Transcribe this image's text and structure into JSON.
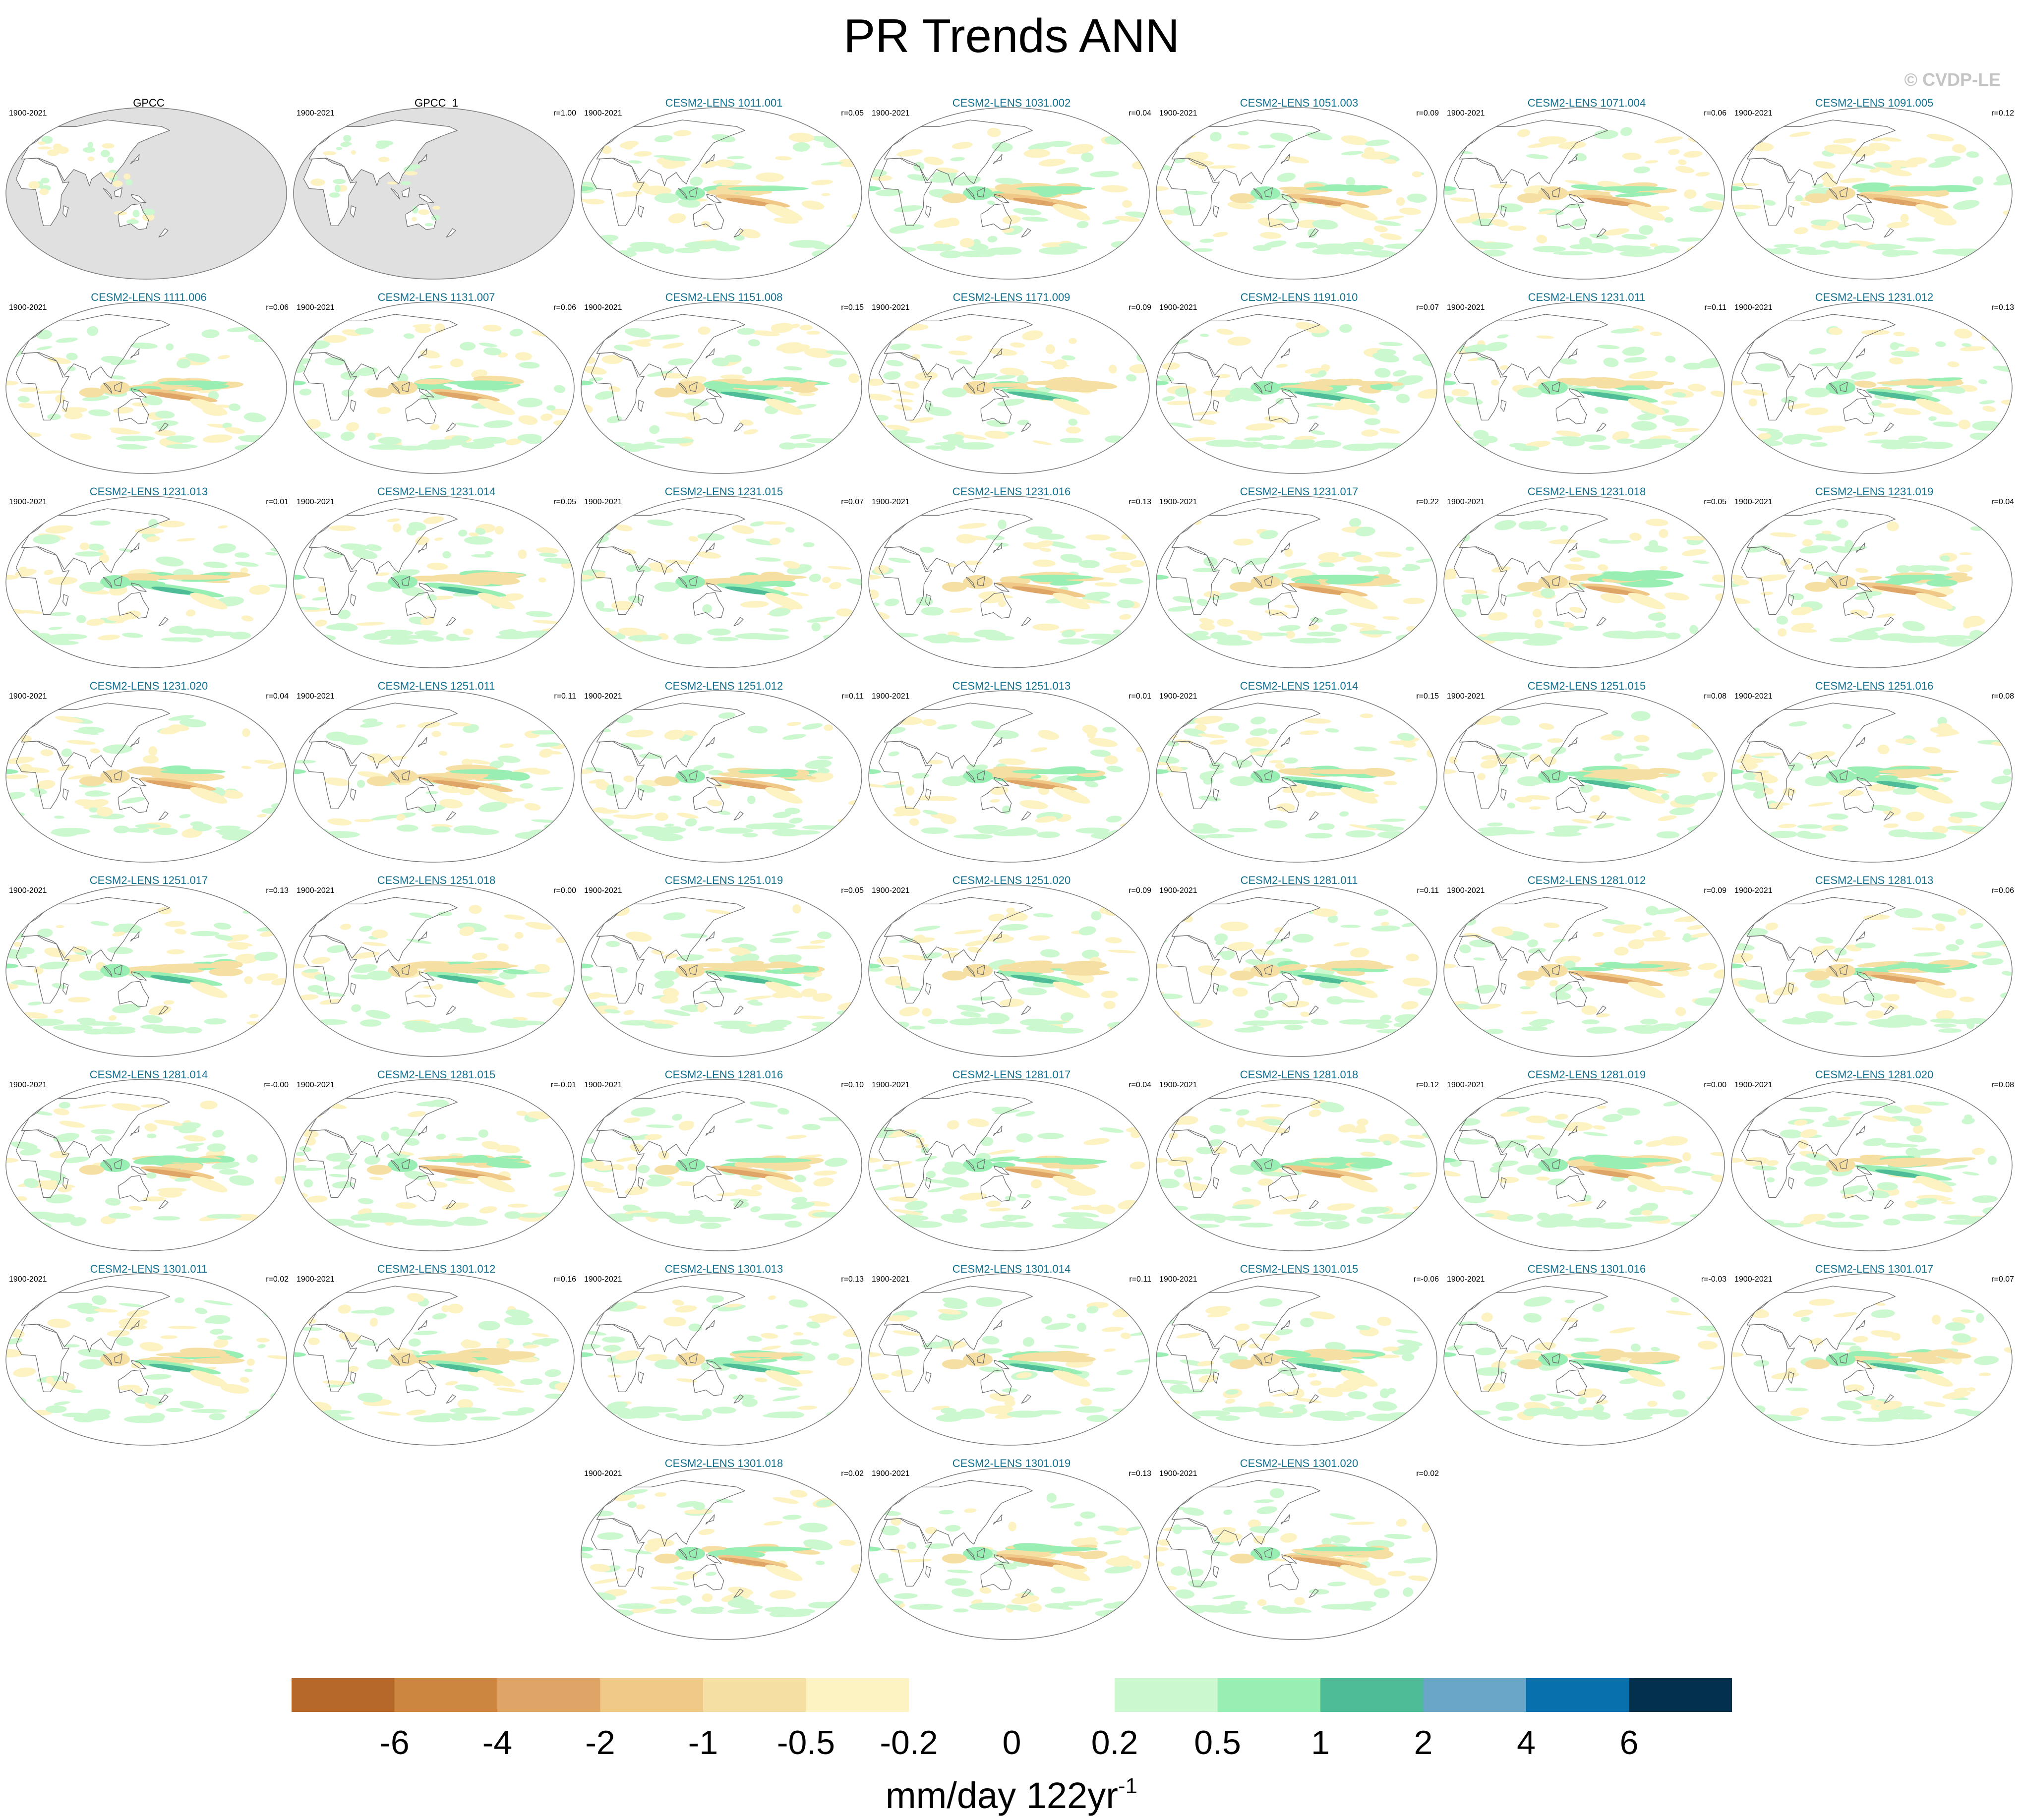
{
  "title": "PR Trends ANN",
  "watermark": "© CVDP-LE",
  "colors": {
    "ocean_obs": "#e0e0e0",
    "coast": "#6e6e6e",
    "member_label": "#14708f"
  },
  "panels": [
    {
      "name": "GPCC",
      "period": "1900-2021",
      "r": "",
      "obs": true
    },
    {
      "name": "GPCC_1",
      "period": "1900-2021",
      "r": "r=1.00",
      "obs": true
    },
    {
      "name": "CESM2-LENS 1011.001",
      "period": "1900-2021",
      "r": "r=0.05"
    },
    {
      "name": "CESM2-LENS 1031.002",
      "period": "1900-2021",
      "r": "r=0.04"
    },
    {
      "name": "CESM2-LENS 1051.003",
      "period": "1900-2021",
      "r": "r=0.09"
    },
    {
      "name": "CESM2-LENS 1071.004",
      "period": "1900-2021",
      "r": "r=0.06"
    },
    {
      "name": "CESM2-LENS 1091.005",
      "period": "1900-2021",
      "r": "r=0.12"
    },
    {
      "name": "CESM2-LENS 1111.006",
      "period": "1900-2021",
      "r": "r=0.06"
    },
    {
      "name": "CESM2-LENS 1131.007",
      "period": "1900-2021",
      "r": "r=0.06"
    },
    {
      "name": "CESM2-LENS 1151.008",
      "period": "1900-2021",
      "r": "r=0.15"
    },
    {
      "name": "CESM2-LENS 1171.009",
      "period": "1900-2021",
      "r": "r=0.09"
    },
    {
      "name": "CESM2-LENS 1191.010",
      "period": "1900-2021",
      "r": "r=0.07"
    },
    {
      "name": "CESM2-LENS 1231.011",
      "period": "1900-2021",
      "r": "r=0.11"
    },
    {
      "name": "CESM2-LENS 1231.012",
      "period": "1900-2021",
      "r": "r=0.13"
    },
    {
      "name": "CESM2-LENS 1231.013",
      "period": "1900-2021",
      "r": "r=0.01"
    },
    {
      "name": "CESM2-LENS 1231.014",
      "period": "1900-2021",
      "r": "r=0.05"
    },
    {
      "name": "CESM2-LENS 1231.015",
      "period": "1900-2021",
      "r": "r=0.07"
    },
    {
      "name": "CESM2-LENS 1231.016",
      "period": "1900-2021",
      "r": "r=0.13"
    },
    {
      "name": "CESM2-LENS 1231.017",
      "period": "1900-2021",
      "r": "r=0.22"
    },
    {
      "name": "CESM2-LENS 1231.018",
      "period": "1900-2021",
      "r": "r=0.05"
    },
    {
      "name": "CESM2-LENS 1231.019",
      "period": "1900-2021",
      "r": "r=0.04"
    },
    {
      "name": "CESM2-LENS 1231.020",
      "period": "1900-2021",
      "r": "r=0.04"
    },
    {
      "name": "CESM2-LENS 1251.011",
      "period": "1900-2021",
      "r": "r=0.11"
    },
    {
      "name": "CESM2-LENS 1251.012",
      "period": "1900-2021",
      "r": "r=0.11"
    },
    {
      "name": "CESM2-LENS 1251.013",
      "period": "1900-2021",
      "r": "r=0.01"
    },
    {
      "name": "CESM2-LENS 1251.014",
      "period": "1900-2021",
      "r": "r=0.15"
    },
    {
      "name": "CESM2-LENS 1251.015",
      "period": "1900-2021",
      "r": "r=0.08"
    },
    {
      "name": "CESM2-LENS 1251.016",
      "period": "1900-2021",
      "r": "r=0.08"
    },
    {
      "name": "CESM2-LENS 1251.017",
      "period": "1900-2021",
      "r": "r=0.13"
    },
    {
      "name": "CESM2-LENS 1251.018",
      "period": "1900-2021",
      "r": "r=0.00"
    },
    {
      "name": "CESM2-LENS 1251.019",
      "period": "1900-2021",
      "r": "r=0.05"
    },
    {
      "name": "CESM2-LENS 1251.020",
      "period": "1900-2021",
      "r": "r=0.09"
    },
    {
      "name": "CESM2-LENS 1281.011",
      "period": "1900-2021",
      "r": "r=0.11"
    },
    {
      "name": "CESM2-LENS 1281.012",
      "period": "1900-2021",
      "r": "r=0.09"
    },
    {
      "name": "CESM2-LENS 1281.013",
      "period": "1900-2021",
      "r": "r=0.06"
    },
    {
      "name": "CESM2-LENS 1281.014",
      "period": "1900-2021",
      "r": "r=-0.00"
    },
    {
      "name": "CESM2-LENS 1281.015",
      "period": "1900-2021",
      "r": "r=-0.01"
    },
    {
      "name": "CESM2-LENS 1281.016",
      "period": "1900-2021",
      "r": "r=0.10"
    },
    {
      "name": "CESM2-LENS 1281.017",
      "period": "1900-2021",
      "r": "r=0.04"
    },
    {
      "name": "CESM2-LENS 1281.018",
      "period": "1900-2021",
      "r": "r=0.12"
    },
    {
      "name": "CESM2-LENS 1281.019",
      "period": "1900-2021",
      "r": "r=0.00"
    },
    {
      "name": "CESM2-LENS 1281.020",
      "period": "1900-2021",
      "r": "r=0.08"
    },
    {
      "name": "CESM2-LENS 1301.011",
      "period": "1900-2021",
      "r": "r=0.02"
    },
    {
      "name": "CESM2-LENS 1301.012",
      "period": "1900-2021",
      "r": "r=0.16"
    },
    {
      "name": "CESM2-LENS 1301.013",
      "period": "1900-2021",
      "r": "r=0.13"
    },
    {
      "name": "CESM2-LENS 1301.014",
      "period": "1900-2021",
      "r": "r=0.11"
    },
    {
      "name": "CESM2-LENS 1301.015",
      "period": "1900-2021",
      "r": "r=-0.06"
    },
    {
      "name": "CESM2-LENS 1301.016",
      "period": "1900-2021",
      "r": "r=-0.03"
    },
    {
      "name": "CESM2-LENS 1301.017",
      "period": "1900-2021",
      "r": "r=0.07"
    },
    {
      "name": "CESM2-LENS 1301.018",
      "period": "1900-2021",
      "r": "r=0.02"
    },
    {
      "name": "CESM2-LENS 1301.019",
      "period": "1900-2021",
      "r": "r=0.13"
    },
    {
      "name": "CESM2-LENS 1301.020",
      "period": "1900-2021",
      "r": "r=0.02"
    }
  ],
  "colorbar": {
    "colors": [
      "#b5682a",
      "#cc8640",
      "#dea566",
      "#f0c988",
      "#f5dfa3",
      "#fdf2c2",
      "#ffffff",
      "#ffffff",
      "#ccf8cf",
      "#99eeb3",
      "#4fbc98",
      "#6aa6c8",
      "#0870ac",
      "#03304d"
    ],
    "ticks": [
      "-6",
      "-4",
      "-2",
      "-1",
      "-0.5",
      "-0.2",
      "0",
      "0.2",
      "0.5",
      "1",
      "2",
      "4",
      "6"
    ]
  },
  "units": {
    "main": "mm/day 122yr",
    "sup": "-1"
  }
}
